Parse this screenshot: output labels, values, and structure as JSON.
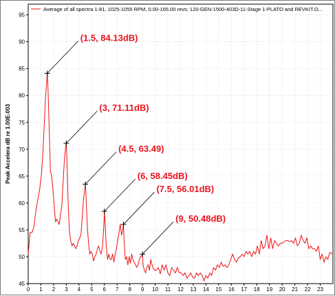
{
  "chart_data": {
    "type": "line",
    "legend": "Average of all spectra 1-81, 1025-1055 RPM, 0.00-165.00 revs; 120-GEN-1500-403D-11-Stage 1-PLATO and REVKIT.O...",
    "ylabel": "Peak Accelera  dB  re 1.00E-003",
    "xlabel": "",
    "xlim": [
      0,
      24
    ],
    "ylim": [
      45,
      97
    ],
    "x_ticks": [
      0,
      1,
      2,
      3,
      4,
      5,
      6,
      7,
      8,
      9,
      10,
      11,
      12,
      13,
      14,
      15,
      16,
      17,
      18,
      19,
      20,
      21,
      22,
      23
    ],
    "y_ticks": [
      45,
      50,
      55,
      60,
      65,
      70,
      75,
      80,
      85,
      90,
      95
    ],
    "grid": true,
    "series": [
      {
        "name": "Average of all spectra 1-81, 1025-1055 RPM, 0.00-165.00 revs; 120-GEN-1500-403D-11-Stage 1-PLATO and REVKIT.O...",
        "color": "#ee1111",
        "x": [
          0,
          0.15,
          0.3,
          0.45,
          0.6,
          0.75,
          0.9,
          1.05,
          1.15,
          1.25,
          1.35,
          1.45,
          1.5,
          1.55,
          1.65,
          1.75,
          1.85,
          1.95,
          2.05,
          2.15,
          2.25,
          2.35,
          2.45,
          2.55,
          2.65,
          2.75,
          2.85,
          2.95,
          3.0,
          3.05,
          3.15,
          3.25,
          3.35,
          3.45,
          3.55,
          3.65,
          3.75,
          3.85,
          3.95,
          4.05,
          4.15,
          4.25,
          4.35,
          4.45,
          4.5,
          4.55,
          4.65,
          4.75,
          4.85,
          4.95,
          5.05,
          5.15,
          5.25,
          5.35,
          5.45,
          5.55,
          5.65,
          5.75,
          5.85,
          5.95,
          6.0,
          6.05,
          6.15,
          6.25,
          6.35,
          6.45,
          6.55,
          6.65,
          6.75,
          6.85,
          6.95,
          7.05,
          7.15,
          7.25,
          7.35,
          7.45,
          7.5,
          7.55,
          7.65,
          7.75,
          7.85,
          7.95,
          8.05,
          8.15,
          8.25,
          8.35,
          8.45,
          8.55,
          8.65,
          8.75,
          8.85,
          8.95,
          9.0,
          9.05,
          9.15,
          9.25,
          9.35,
          9.45,
          9.55,
          9.65,
          9.75,
          9.85,
          9.95,
          10.1,
          10.25,
          10.4,
          10.55,
          10.7,
          10.85,
          11.0,
          11.15,
          11.3,
          11.45,
          11.6,
          11.75,
          11.9,
          12.05,
          12.2,
          12.35,
          12.5,
          12.65,
          12.8,
          12.95,
          13.1,
          13.25,
          13.4,
          13.55,
          13.7,
          13.85,
          14.0,
          14.15,
          14.3,
          14.45,
          14.6,
          14.75,
          14.9,
          15.05,
          15.2,
          15.35,
          15.5,
          15.65,
          15.8,
          15.95,
          16.1,
          16.25,
          16.4,
          16.55,
          16.7,
          16.85,
          17.0,
          17.15,
          17.3,
          17.45,
          17.6,
          17.75,
          17.9,
          18.05,
          18.2,
          18.35,
          18.5,
          18.65,
          18.8,
          18.95,
          19.1,
          19.25,
          19.4,
          19.55,
          19.7,
          19.85,
          20.0,
          20.15,
          20.3,
          20.45,
          20.6,
          20.75,
          20.9,
          21.05,
          21.2,
          21.35,
          21.5,
          21.65,
          21.8,
          21.95,
          22.1,
          22.25,
          22.4,
          22.55,
          22.7,
          22.85,
          23.0,
          23.15,
          23.3,
          23.45,
          23.6,
          23.75,
          24.0
        ],
        "values": [
          50.5,
          54.5,
          54.5,
          55.5,
          58.5,
          60.5,
          62.5,
          65.5,
          69,
          74,
          79,
          82.5,
          84.13,
          82,
          74,
          66,
          65,
          62.5,
          59.5,
          56.5,
          57,
          56.5,
          56,
          58,
          59.5,
          64,
          68,
          70.5,
          71.11,
          68,
          60,
          54.5,
          53,
          52,
          52.5,
          52,
          51.5,
          52,
          53,
          53.5,
          54,
          57,
          60.5,
          62.5,
          63.49,
          61.5,
          56,
          52.5,
          50.5,
          51,
          50.5,
          49.2,
          50,
          50.5,
          51.5,
          52,
          51,
          50.5,
          52,
          55.5,
          58.45,
          56.5,
          52,
          49.5,
          50.5,
          49.5,
          49.5,
          50.5,
          49,
          50.5,
          51.5,
          53,
          54.5,
          56,
          54,
          55,
          56.01,
          53,
          49.5,
          50,
          48.5,
          50,
          48.8,
          50.5,
          49.5,
          49,
          48.5,
          48,
          48.5,
          49.5,
          50,
          50.2,
          50.48,
          48.5,
          47.5,
          47,
          48,
          48.5,
          47.5,
          49.5,
          48.5,
          47.8,
          47.5,
          47.5,
          48,
          46.8,
          48.5,
          47.5,
          48.5,
          47,
          46.5,
          48,
          47.5,
          47,
          48,
          47,
          47,
          46.5,
          47,
          46,
          46.5,
          47,
          46.2,
          46,
          47,
          46.5,
          47,
          46.5,
          45.5,
          46.5,
          46,
          47,
          46.5,
          48,
          47.5,
          48.5,
          48,
          49,
          48.2,
          48.5,
          48,
          48.5,
          49.5,
          50.5,
          49.5,
          49,
          49.8,
          50,
          50.5,
          50,
          51,
          50.5,
          51,
          50,
          51,
          50.5,
          52,
          50.5,
          53,
          51.5,
          52,
          54,
          51.5,
          53.5,
          51.5,
          53,
          52.5,
          52,
          52.5,
          52.5,
          52.8,
          53,
          53,
          52.8,
          53,
          52.5,
          53.5,
          52,
          52.5,
          54,
          53,
          52.5,
          53.5,
          51.5,
          52,
          51.5,
          51.5,
          51,
          52,
          49.5,
          50.5,
          49,
          50,
          49.5,
          50.8,
          50.5
        ]
      }
    ],
    "annotations": [
      {
        "text": "(1.5, 84.13dB)",
        "x": 1.5,
        "y": 84.13
      },
      {
        "text": "(3, 71.11dB)",
        "x": 3,
        "y": 71.11
      },
      {
        "text": "(4.5, 63.49)",
        "x": 4.5,
        "y": 63.49
      },
      {
        "text": "(6, 58.45dB)",
        "x": 6,
        "y": 58.45
      },
      {
        "text": "(7.5, 56.01dB)",
        "x": 7.5,
        "y": 56.01
      },
      {
        "text": "(9, 50.48dB)",
        "x": 9,
        "y": 50.48
      }
    ]
  }
}
